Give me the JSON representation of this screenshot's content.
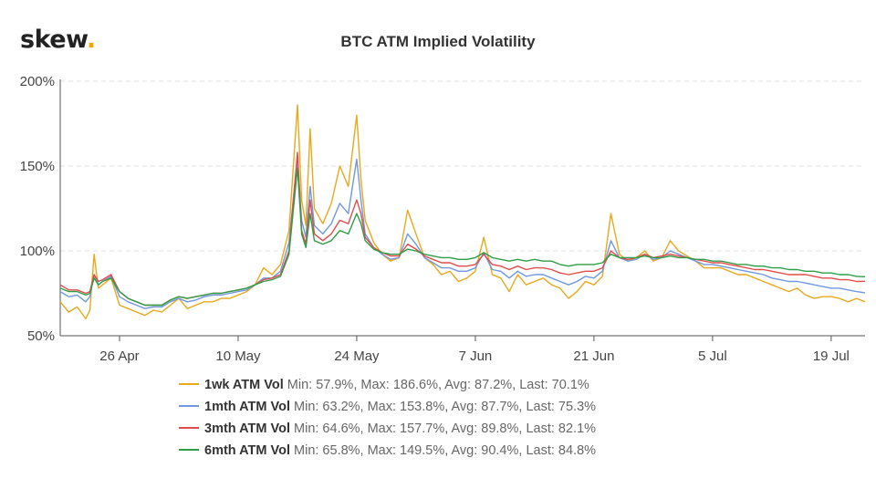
{
  "brand": {
    "logo_text": "skew",
    "logo_dot": "."
  },
  "chart_data": {
    "type": "line",
    "title": "BTC ATM Implied Volatility",
    "xlabel": "",
    "ylabel": "",
    "ylim": [
      50,
      200
    ],
    "y_ticks": [
      50,
      100,
      150,
      200
    ],
    "y_tick_labels": [
      "50%",
      "100%",
      "150%",
      "200%"
    ],
    "x_range_days": [
      0,
      95
    ],
    "x_ticks": [
      {
        "day": 7,
        "label": "26 Apr"
      },
      {
        "day": 21,
        "label": "10 May"
      },
      {
        "day": 35,
        "label": "24 May"
      },
      {
        "day": 49,
        "label": "7 Jun"
      },
      {
        "day": 63,
        "label": "21 Jun"
      },
      {
        "day": 77,
        "label": "5 Jul"
      },
      {
        "day": 91,
        "label": "19 Jul"
      }
    ],
    "grid": true,
    "series": [
      {
        "name": "1wk ATM Vol",
        "color": "#e8a91c",
        "stats": "Min: 57.9%, Max: 186.6%, Avg: 87.2%, Last: 70.1%",
        "x": [
          0,
          1,
          2,
          3,
          3.5,
          4,
          4.5,
          5,
          6,
          7,
          8,
          9,
          10,
          11,
          12,
          13,
          14,
          15,
          16,
          17,
          18,
          19,
          20,
          21,
          22,
          23,
          24,
          25,
          26,
          27,
          28,
          28.5,
          29,
          29.5,
          30,
          31,
          32,
          33,
          34,
          35,
          35.5,
          36,
          37,
          38,
          39,
          40,
          41,
          42,
          43,
          44,
          45,
          46,
          47,
          48,
          49,
          50,
          51,
          52,
          53,
          54,
          55,
          56,
          57,
          58,
          59,
          60,
          61,
          62,
          63,
          64,
          65,
          66,
          67,
          68,
          69,
          70,
          71,
          72,
          73,
          74,
          75,
          76,
          77,
          78,
          79,
          80,
          81,
          82,
          83,
          84,
          85,
          86,
          87,
          88,
          89,
          90,
          91,
          92,
          93,
          94,
          95
        ],
        "values": [
          70,
          64,
          67,
          60,
          65,
          98,
          78,
          80,
          84,
          68,
          66,
          64,
          62,
          65,
          64,
          68,
          72,
          66,
          68,
          70,
          70,
          72,
          72,
          74,
          76,
          80,
          90,
          86,
          92,
          112,
          186,
          130,
          115,
          172,
          125,
          116,
          128,
          150,
          138,
          180,
          142,
          118,
          105,
          98,
          94,
          96,
          124,
          110,
          96,
          92,
          86,
          88,
          82,
          84,
          88,
          108,
          86,
          84,
          76,
          86,
          80,
          82,
          84,
          80,
          78,
          72,
          76,
          82,
          80,
          85,
          122,
          98,
          94,
          96,
          100,
          94,
          96,
          106,
          100,
          97,
          94,
          90,
          90,
          90,
          88,
          86,
          86,
          84,
          82,
          80,
          78,
          76,
          78,
          74,
          72,
          73,
          73,
          72,
          70,
          72,
          70
        ]
      },
      {
        "name": "1mth ATM Vol",
        "color": "#6f98e0",
        "stats": "Min: 63.2%, Max: 153.8%, Avg: 87.7%, Last: 75.3%",
        "x": [
          0,
          1,
          2,
          3,
          3.5,
          4,
          4.5,
          5,
          6,
          7,
          8,
          9,
          10,
          11,
          12,
          13,
          14,
          15,
          16,
          17,
          18,
          19,
          20,
          21,
          22,
          23,
          24,
          25,
          26,
          27,
          28,
          28.5,
          29,
          29.5,
          30,
          31,
          32,
          33,
          34,
          35,
          35.5,
          36,
          37,
          38,
          39,
          40,
          41,
          42,
          43,
          44,
          45,
          46,
          47,
          48,
          49,
          50,
          51,
          52,
          53,
          54,
          55,
          56,
          57,
          58,
          59,
          60,
          61,
          62,
          63,
          64,
          65,
          66,
          67,
          68,
          69,
          70,
          71,
          72,
          73,
          74,
          75,
          76,
          77,
          78,
          79,
          80,
          81,
          82,
          83,
          84,
          85,
          86,
          87,
          88,
          89,
          90,
          91,
          92,
          93,
          94,
          95
        ],
        "values": [
          76,
          73,
          74,
          70,
          73,
          86,
          80,
          82,
          85,
          73,
          70,
          68,
          66,
          67,
          67,
          70,
          72,
          70,
          71,
          73,
          74,
          74,
          75,
          76,
          77,
          80,
          84,
          84,
          88,
          105,
          155,
          118,
          108,
          138,
          115,
          110,
          116,
          128,
          122,
          154,
          130,
          110,
          102,
          98,
          95,
          96,
          110,
          104,
          96,
          93,
          90,
          90,
          88,
          88,
          90,
          99,
          89,
          88,
          84,
          88,
          85,
          86,
          86,
          84,
          82,
          80,
          82,
          85,
          84,
          88,
          106,
          96,
          94,
          95,
          98,
          95,
          96,
          100,
          98,
          96,
          94,
          92,
          92,
          91,
          90,
          89,
          88,
          87,
          86,
          84,
          83,
          82,
          82,
          81,
          80,
          79,
          78,
          78,
          77,
          76,
          75.3
        ]
      },
      {
        "name": "3mth ATM Vol",
        "color": "#e24b4b",
        "stats": "Min: 64.6%, Max: 157.7%, Avg: 89.8%, Last: 82.1%",
        "x": [
          0,
          1,
          2,
          3,
          3.5,
          4,
          4.5,
          5,
          6,
          7,
          8,
          9,
          10,
          11,
          12,
          13,
          14,
          15,
          16,
          17,
          18,
          19,
          20,
          21,
          22,
          23,
          24,
          25,
          26,
          27,
          28,
          28.5,
          29,
          29.5,
          30,
          31,
          32,
          33,
          34,
          35,
          35.5,
          36,
          37,
          38,
          39,
          40,
          41,
          42,
          43,
          44,
          45,
          46,
          47,
          48,
          49,
          50,
          51,
          52,
          53,
          54,
          55,
          56,
          57,
          58,
          59,
          60,
          61,
          62,
          63,
          64,
          65,
          66,
          67,
          68,
          69,
          70,
          71,
          72,
          73,
          74,
          75,
          76,
          77,
          78,
          79,
          80,
          81,
          82,
          83,
          84,
          85,
          86,
          87,
          88,
          89,
          90,
          91,
          92,
          93,
          94,
          95
        ],
        "values": [
          80,
          77,
          77,
          75,
          76,
          86,
          82,
          83,
          86,
          76,
          72,
          70,
          68,
          68,
          68,
          71,
          73,
          72,
          73,
          74,
          75,
          75,
          76,
          77,
          78,
          80,
          83,
          84,
          86,
          100,
          158,
          112,
          104,
          130,
          110,
          106,
          110,
          118,
          116,
          130,
          122,
          108,
          102,
          99,
          97,
          97,
          104,
          101,
          97,
          95,
          93,
          93,
          91,
          91,
          92,
          98,
          92,
          91,
          89,
          91,
          89,
          90,
          90,
          89,
          87,
          86,
          87,
          88,
          88,
          90,
          100,
          96,
          95,
          96,
          98,
          96,
          97,
          98,
          97,
          96,
          95,
          94,
          93,
          93,
          92,
          91,
          90,
          89,
          89,
          88,
          87,
          86,
          86,
          86,
          85,
          84,
          84,
          83,
          83,
          82,
          82.1
        ]
      },
      {
        "name": "6mth ATM Vol",
        "color": "#2e9e46",
        "stats": "Min: 65.8%, Max: 149.5%, Avg: 90.4%, Last: 84.8%",
        "x": [
          0,
          1,
          2,
          3,
          3.5,
          4,
          4.5,
          5,
          6,
          7,
          8,
          9,
          10,
          11,
          12,
          13,
          14,
          15,
          16,
          17,
          18,
          19,
          20,
          21,
          22,
          23,
          24,
          25,
          26,
          27,
          28,
          28.5,
          29,
          29.5,
          30,
          31,
          32,
          33,
          34,
          35,
          35.5,
          36,
          37,
          38,
          39,
          40,
          41,
          42,
          43,
          44,
          45,
          46,
          47,
          48,
          49,
          50,
          51,
          52,
          53,
          54,
          55,
          56,
          57,
          58,
          59,
          60,
          61,
          62,
          63,
          64,
          65,
          66,
          67,
          68,
          69,
          70,
          71,
          72,
          73,
          74,
          75,
          76,
          77,
          78,
          79,
          80,
          81,
          82,
          83,
          84,
          85,
          86,
          87,
          88,
          89,
          90,
          91,
          92,
          93,
          94,
          95
        ],
        "values": [
          78,
          76,
          76,
          74,
          75,
          84,
          80,
          82,
          84,
          76,
          72,
          70,
          68,
          68,
          68,
          71,
          73,
          72,
          73,
          74,
          75,
          75,
          76,
          77,
          78,
          80,
          82,
          83,
          85,
          98,
          149,
          110,
          102,
          122,
          106,
          104,
          106,
          112,
          110,
          122,
          116,
          106,
          101,
          99,
          98,
          98,
          101,
          100,
          98,
          97,
          96,
          96,
          95,
          95,
          96,
          99,
          96,
          95,
          94,
          95,
          94,
          95,
          94,
          94,
          92,
          91,
          92,
          92,
          92,
          93,
          98,
          96,
          96,
          96,
          97,
          96,
          96,
          97,
          96,
          96,
          95,
          95,
          94,
          94,
          93,
          92,
          92,
          91,
          91,
          90,
          90,
          89,
          89,
          88,
          88,
          87,
          87,
          86,
          86,
          85,
          84.8
        ]
      }
    ]
  }
}
